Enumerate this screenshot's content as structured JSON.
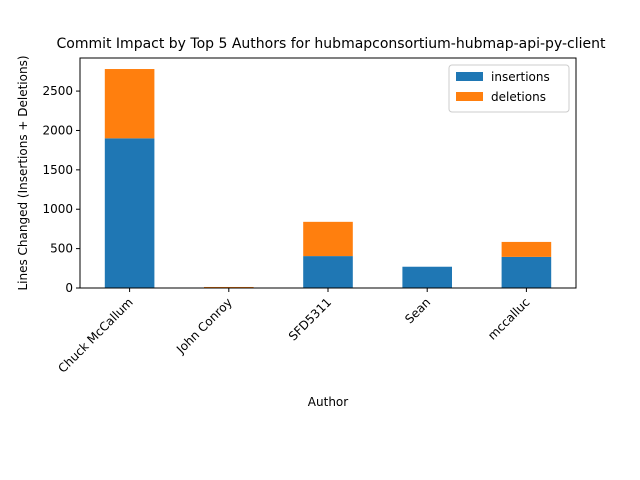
{
  "chart_data": {
    "type": "bar",
    "stacked": true,
    "title": "Commit Impact by Top 5 Authors for hubmapconsortium-hubmap-api-py-client",
    "xlabel": "Author",
    "ylabel": "Lines Changed (Insertions + Deletions)",
    "categories": [
      "Chuck McCallum",
      "John Conroy",
      "SFD5311",
      "Sean",
      "mccalluc"
    ],
    "series": [
      {
        "name": "insertions",
        "color": "#1f77b4",
        "values": [
          1900,
          5,
          405,
          270,
          395
        ]
      },
      {
        "name": "deletions",
        "color": "#ff7f0e",
        "values": [
          880,
          8,
          435,
          0,
          190
        ]
      }
    ],
    "ylim": [
      0,
      2920
    ],
    "yticks": [
      0,
      500,
      1000,
      1500,
      2000,
      2500
    ],
    "grid": false,
    "legend_position": "top-right"
  }
}
